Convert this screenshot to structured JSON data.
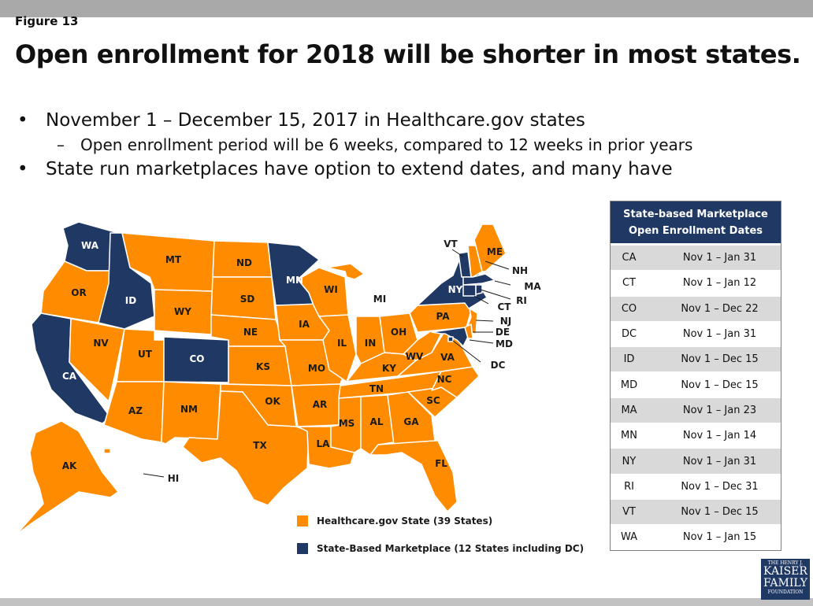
{
  "figure_label": "Figure 13",
  "title": "Open enrollment for 2018 will be shorter in most states.",
  "bullets": [
    "November 1 – December 15, 2017 in Healthcare.gov states",
    "Open enrollment period will be 6 weeks, compared to 12 weeks in prior years",
    "State run marketplaces have option to extend dates, and many have"
  ],
  "map": {
    "colors": {
      "healthcare_gov": "#ff8c00",
      "state_based": "#1f3864"
    },
    "legend": [
      {
        "label": "Healthcare.gov State (39 States)",
        "color": "#ff8c00"
      },
      {
        "label": "State-Based Marketplace (12 States including DC)",
        "color": "#1f3864"
      }
    ],
    "state_based": [
      "WA",
      "ID",
      "CA",
      "CO",
      "MN",
      "NY",
      "VT",
      "MA",
      "CT",
      "RI",
      "MD",
      "DC"
    ],
    "healthcare_gov": [
      "OR",
      "NV",
      "UT",
      "AZ",
      "MT",
      "WY",
      "NM",
      "ND",
      "SD",
      "NE",
      "KS",
      "OK",
      "TX",
      "IA",
      "MO",
      "AR",
      "LA",
      "WI",
      "IL",
      "MI",
      "IN",
      "OH",
      "KY",
      "TN",
      "MS",
      "AL",
      "GA",
      "FL",
      "SC",
      "NC",
      "VA",
      "WV",
      "PA",
      "NJ",
      "DE",
      "NH",
      "ME",
      "AK",
      "HI"
    ]
  },
  "table": {
    "title_line1": "State-based Marketplace",
    "title_line2": "Open Enrollment Dates",
    "rows": [
      {
        "state": "CA",
        "dates": "Nov 1 – Jan 31"
      },
      {
        "state": "CT",
        "dates": "Nov 1 – Jan 12"
      },
      {
        "state": "CO",
        "dates": "Nov 1 – Dec 22"
      },
      {
        "state": "DC",
        "dates": "Nov 1 – Jan 31"
      },
      {
        "state": "ID",
        "dates": "Nov 1 – Dec 15"
      },
      {
        "state": "MD",
        "dates": "Nov 1 – Dec 15"
      },
      {
        "state": "MA",
        "dates": "Nov 1 – Jan 23"
      },
      {
        "state": "MN",
        "dates": "Nov 1 – Jan 14"
      },
      {
        "state": "NY",
        "dates": "Nov 1 – Jan 31"
      },
      {
        "state": "RI",
        "dates": "Nov 1 – Dec 31"
      },
      {
        "state": "VT",
        "dates": "Nov 1 – Dec 15"
      },
      {
        "state": "WA",
        "dates": "Nov 1 – Jan 15"
      }
    ]
  },
  "logo": {
    "line1": "THE HENRY J.",
    "line2": "KAISER",
    "line3": "FAMILY",
    "line4": "FOUNDATION"
  }
}
